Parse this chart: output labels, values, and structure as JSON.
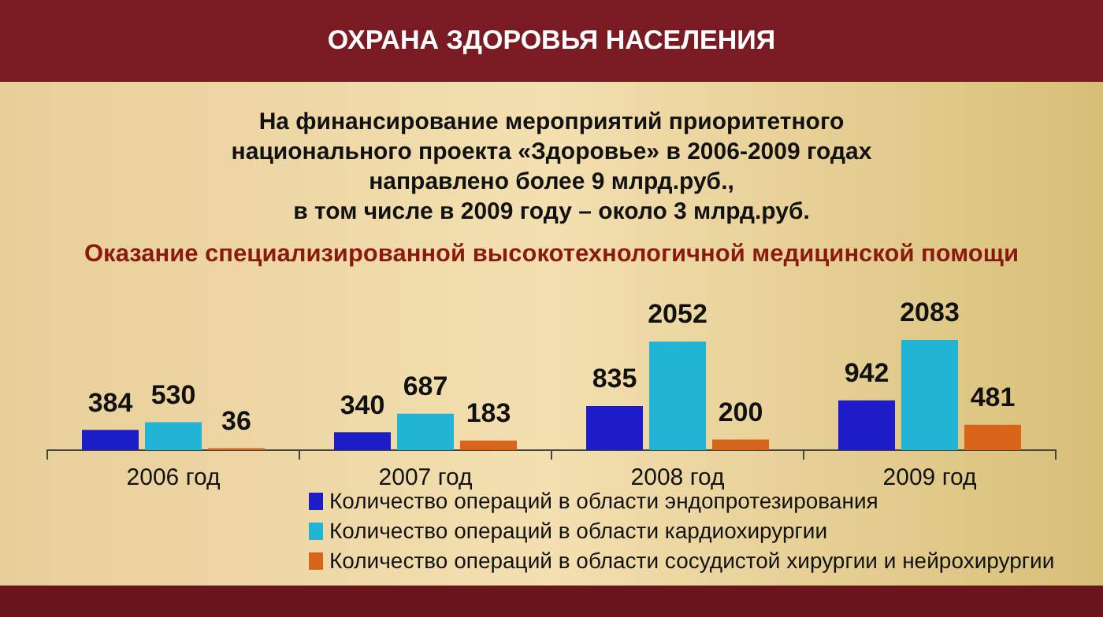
{
  "chart_data": {
    "type": "bar",
    "title": "ОХРАНА ЗДОРОВЬЯ НАСЕЛЕНИЯ",
    "subtitle": "На финансирование мероприятий приоритетного\nнационального проекта «Здоровье» в 2006-2009 годах\nнаправлено более 9 млрд.руб.,\nв том числе в 2009 году – около 3 млрд.руб.",
    "annotations": [
      "Оказание специализированной высокотехнологичной медицинской помощи"
    ],
    "categories": [
      "2006 год",
      "2007 год",
      "2008 год",
      "2009 год"
    ],
    "series": [
      {
        "name": "Количество операций в области эндопротезирования",
        "color": "#1c1cc8",
        "values": [
          384,
          340,
          835,
          942
        ]
      },
      {
        "name": "Количество операций в области кардиохирургии",
        "color": "#22b4d4",
        "values": [
          530,
          687,
          2052,
          2083
        ]
      },
      {
        "name": "Количество операций в области сосудистой хирургии и нейрохирургии",
        "color": "#d8641a",
        "values": [
          36,
          183,
          200,
          481
        ]
      }
    ],
    "data_labels": true,
    "grid": false,
    "legend": "bottom"
  }
}
